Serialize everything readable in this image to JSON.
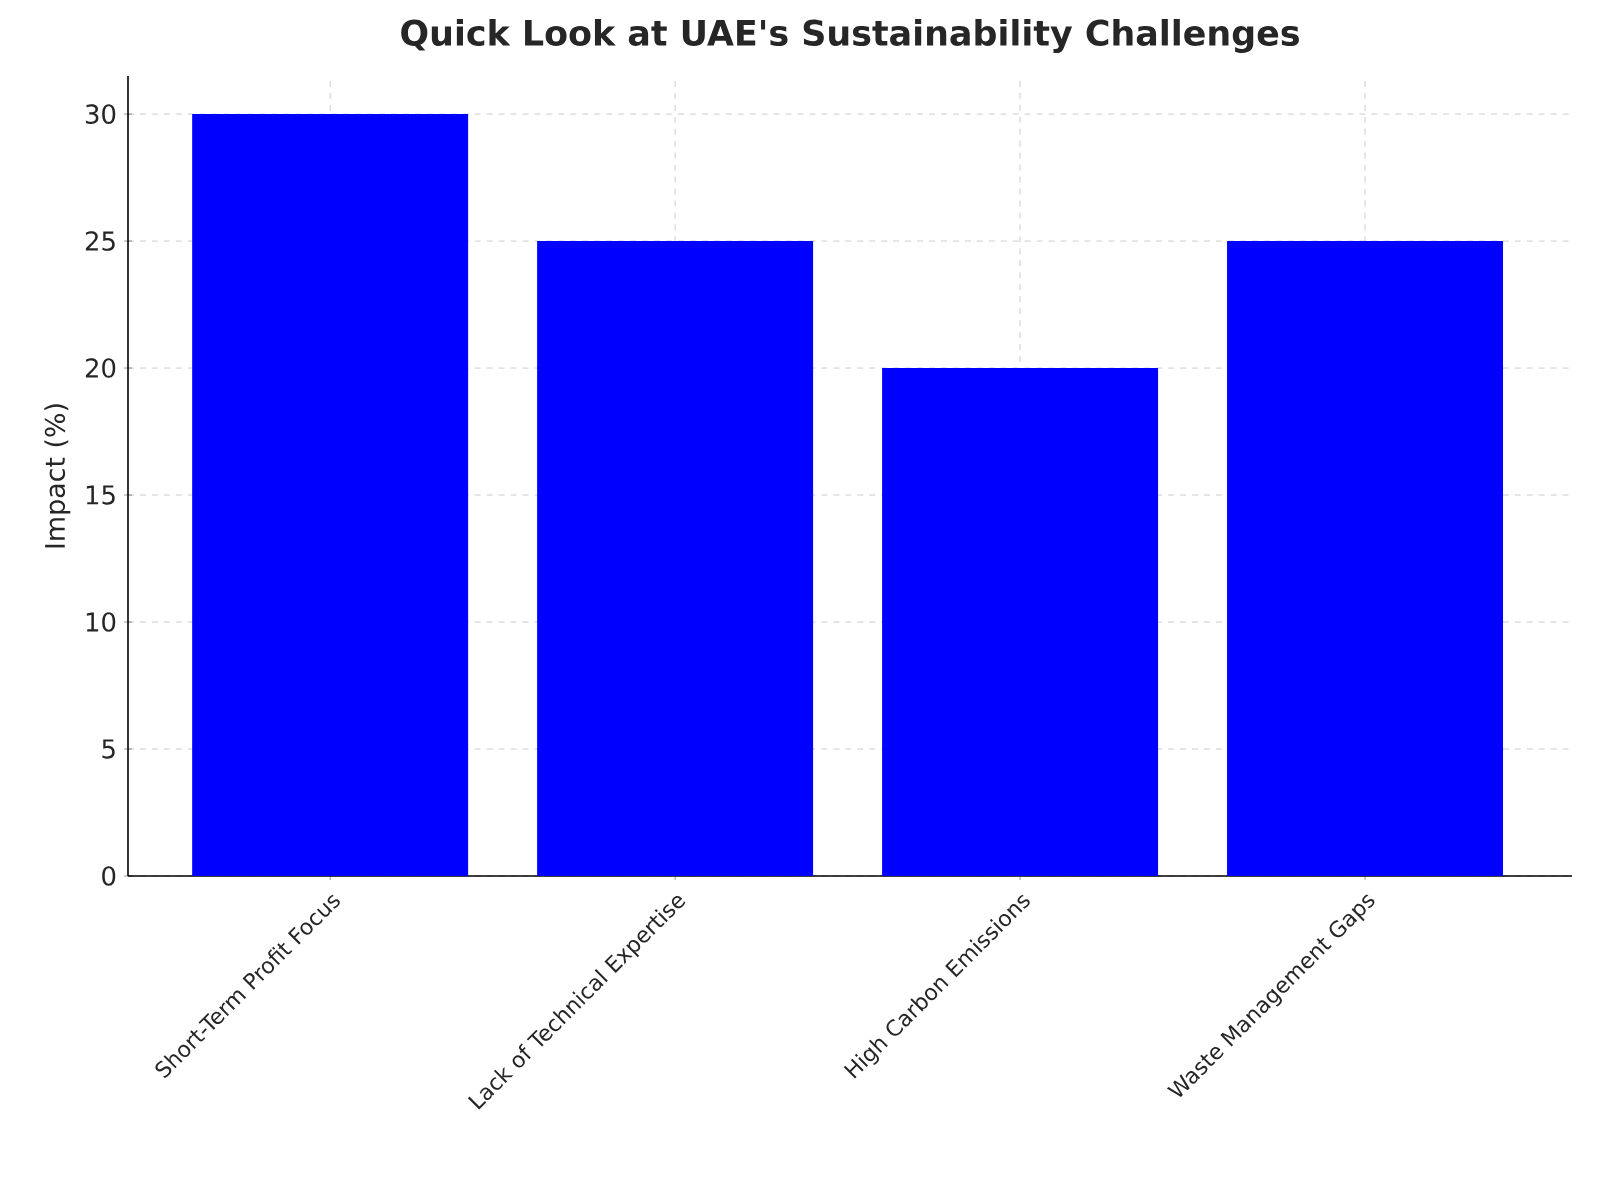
{
  "chart_data": {
    "type": "bar",
    "title": "Quick Look at UAE's Sustainability Challenges",
    "ylabel": "Impact (%)",
    "categories": [
      "Short-Term Profit Focus",
      "Lack of Technical Expertise",
      "High Carbon Emissions",
      "Waste Management Gaps"
    ],
    "values": [
      30,
      25,
      20,
      25
    ],
    "color": "#0000ff",
    "ylim": [
      0,
      31.5
    ],
    "yticks": [
      0,
      5,
      10,
      15,
      20,
      25,
      30
    ],
    "grid": true
  }
}
